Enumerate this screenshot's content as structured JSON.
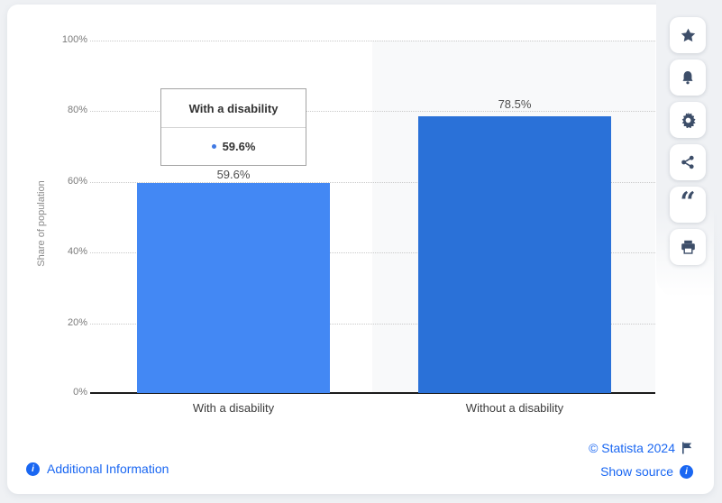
{
  "chart_data": {
    "type": "bar",
    "title": "",
    "categories": [
      "With a disability",
      "Without a disability"
    ],
    "values": [
      59.6,
      78.5
    ],
    "value_labels": [
      "59.6%",
      "78.5%"
    ],
    "ylabel": "Share of population",
    "ylim": [
      0,
      100
    ],
    "yticks": [
      "100%",
      "80%",
      "60%",
      "40%",
      "20%",
      "0%"
    ],
    "grid": true,
    "legend": false,
    "bar_colors": [
      "#4388f4",
      "#2a71d8"
    ],
    "highlighted_category": "With a disability"
  },
  "tooltip": {
    "title": "With a disability",
    "value": "59.6%"
  },
  "sidebar": {
    "icons": [
      "star-icon",
      "bell-icon",
      "gear-icon",
      "share-icon",
      "quote-icon",
      "printer-icon"
    ],
    "icon_color": "#3d4e69"
  },
  "footer": {
    "additional_information": "Additional Information",
    "copyright": "© Statista 2024",
    "show_source": "Show source"
  },
  "colors": {
    "link_blue": "#1a67f2",
    "bar_hovered": "#4388f4",
    "bar_default": "#2a71d8",
    "hover_band": "#f8f9fa",
    "page_background": "#eff1f4"
  }
}
